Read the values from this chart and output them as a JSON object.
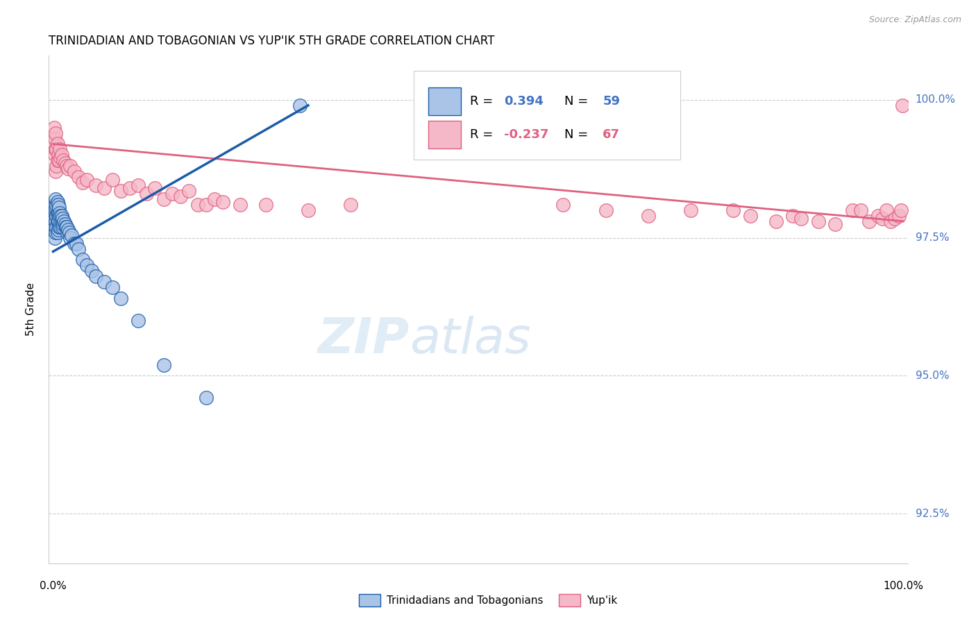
{
  "title": "TRINIDADIAN AND TOBAGONIAN VS YUP'IK 5TH GRADE CORRELATION CHART",
  "source": "Source: ZipAtlas.com",
  "ylabel": "5th Grade",
  "ytick_labels": [
    "92.5%",
    "95.0%",
    "97.5%",
    "100.0%"
  ],
  "ytick_values": [
    0.925,
    0.95,
    0.975,
    1.0
  ],
  "xlim": [
    -0.005,
    1.005
  ],
  "ylim": [
    0.916,
    1.008
  ],
  "legend_label_blue": "Trinidadians and Tobagonians",
  "legend_label_pink": "Yup'ik",
  "blue_color": "#aac4e8",
  "blue_line_color": "#1a5ca8",
  "pink_color": "#f5b8c8",
  "pink_line_color": "#e06080",
  "blue_scatter_x": [
    0.001,
    0.001,
    0.001,
    0.002,
    0.002,
    0.002,
    0.002,
    0.002,
    0.003,
    0.003,
    0.003,
    0.003,
    0.003,
    0.004,
    0.004,
    0.004,
    0.005,
    0.005,
    0.005,
    0.005,
    0.006,
    0.006,
    0.006,
    0.006,
    0.007,
    0.007,
    0.007,
    0.008,
    0.008,
    0.009,
    0.009,
    0.01,
    0.01,
    0.011,
    0.011,
    0.012,
    0.013,
    0.014,
    0.015,
    0.016,
    0.017,
    0.018,
    0.019,
    0.02,
    0.022,
    0.025,
    0.027,
    0.03,
    0.035,
    0.04,
    0.045,
    0.05,
    0.06,
    0.07,
    0.08,
    0.1,
    0.13,
    0.18,
    0.29
  ],
  "blue_scatter_y": [
    0.9765,
    0.978,
    0.9795,
    0.975,
    0.977,
    0.9785,
    0.98,
    0.981,
    0.976,
    0.978,
    0.9795,
    0.9805,
    0.982,
    0.977,
    0.979,
    0.981,
    0.976,
    0.978,
    0.9795,
    0.9815,
    0.9765,
    0.978,
    0.9795,
    0.981,
    0.977,
    0.979,
    0.9805,
    0.9775,
    0.9795,
    0.977,
    0.979,
    0.9775,
    0.979,
    0.977,
    0.9785,
    0.9775,
    0.978,
    0.9775,
    0.977,
    0.977,
    0.976,
    0.9765,
    0.976,
    0.975,
    0.9755,
    0.974,
    0.974,
    0.973,
    0.971,
    0.97,
    0.969,
    0.968,
    0.967,
    0.966,
    0.964,
    0.96,
    0.952,
    0.946,
    0.999
  ],
  "pink_scatter_x": [
    0.001,
    0.001,
    0.002,
    0.002,
    0.003,
    0.003,
    0.003,
    0.004,
    0.004,
    0.005,
    0.005,
    0.006,
    0.007,
    0.008,
    0.009,
    0.01,
    0.012,
    0.014,
    0.016,
    0.018,
    0.02,
    0.025,
    0.03,
    0.035,
    0.04,
    0.05,
    0.06,
    0.07,
    0.08,
    0.09,
    0.1,
    0.11,
    0.12,
    0.13,
    0.14,
    0.15,
    0.16,
    0.17,
    0.18,
    0.19,
    0.2,
    0.22,
    0.25,
    0.3,
    0.35,
    0.6,
    0.65,
    0.7,
    0.75,
    0.8,
    0.82,
    0.85,
    0.87,
    0.88,
    0.9,
    0.92,
    0.94,
    0.95,
    0.96,
    0.97,
    0.975,
    0.98,
    0.985,
    0.99,
    0.995,
    0.997,
    0.999
  ],
  "pink_scatter_y": [
    0.992,
    0.995,
    0.99,
    0.993,
    0.987,
    0.991,
    0.994,
    0.988,
    0.991,
    0.989,
    0.992,
    0.99,
    0.989,
    0.991,
    0.9895,
    0.99,
    0.989,
    0.9885,
    0.988,
    0.9875,
    0.988,
    0.987,
    0.986,
    0.985,
    0.9855,
    0.9845,
    0.984,
    0.9855,
    0.9835,
    0.984,
    0.9845,
    0.983,
    0.984,
    0.982,
    0.983,
    0.9825,
    0.9835,
    0.981,
    0.981,
    0.982,
    0.9815,
    0.981,
    0.981,
    0.98,
    0.981,
    0.981,
    0.98,
    0.979,
    0.98,
    0.98,
    0.979,
    0.978,
    0.979,
    0.9785,
    0.978,
    0.9775,
    0.98,
    0.98,
    0.978,
    0.979,
    0.9785,
    0.98,
    0.978,
    0.9785,
    0.979,
    0.98,
    0.999
  ],
  "blue_trendline_x": [
    0.0,
    0.3
  ],
  "blue_trendline_y": [
    0.9725,
    0.999
  ],
  "pink_trendline_x": [
    0.0,
    1.0
  ],
  "pink_trendline_y": [
    0.992,
    0.978
  ],
  "watermark_zip": "ZIP",
  "watermark_atlas": "atlas",
  "ytick_color": "#4472c4",
  "grid_color": "#cccccc",
  "spine_color": "#cccccc"
}
